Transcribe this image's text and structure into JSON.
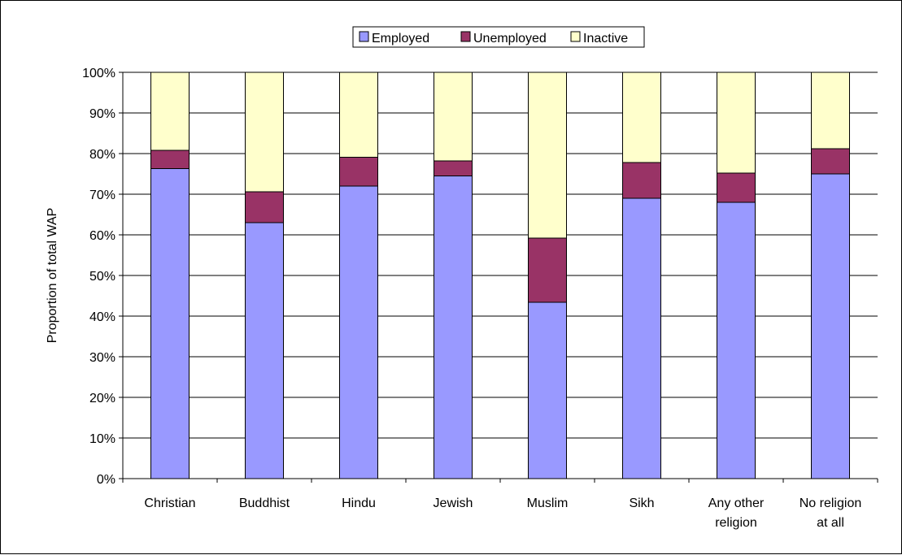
{
  "chart_data": {
    "type": "bar",
    "stacked": true,
    "categories": [
      [
        "Christian"
      ],
      [
        "Buddhist"
      ],
      [
        "Hindu"
      ],
      [
        "Jewish"
      ],
      [
        "Muslim"
      ],
      [
        "Sikh"
      ],
      [
        "Any other",
        "religion"
      ],
      [
        "No religion",
        "at all"
      ]
    ],
    "series": [
      {
        "name": "Employed",
        "color": "#9999ff",
        "values": [
          76.3,
          63.0,
          72.0,
          74.5,
          43.4,
          69.0,
          68.0,
          75.0
        ]
      },
      {
        "name": "Unemployed",
        "color": "#993366",
        "values": [
          4.5,
          7.6,
          7.1,
          3.7,
          15.8,
          8.8,
          7.2,
          6.2
        ]
      },
      {
        "name": "Inactive",
        "color": "#ffffcc",
        "values": [
          19.2,
          29.4,
          20.9,
          21.8,
          40.8,
          22.2,
          24.8,
          18.8
        ]
      }
    ],
    "ylabel": "Proportion of total WAP",
    "xlabel": "",
    "title": "",
    "ylim": [
      0,
      100
    ],
    "yticks": [
      "0%",
      "10%",
      "20%",
      "30%",
      "40%",
      "50%",
      "60%",
      "70%",
      "80%",
      "90%",
      "100%"
    ],
    "grid": true,
    "legend_position": "top-center"
  }
}
